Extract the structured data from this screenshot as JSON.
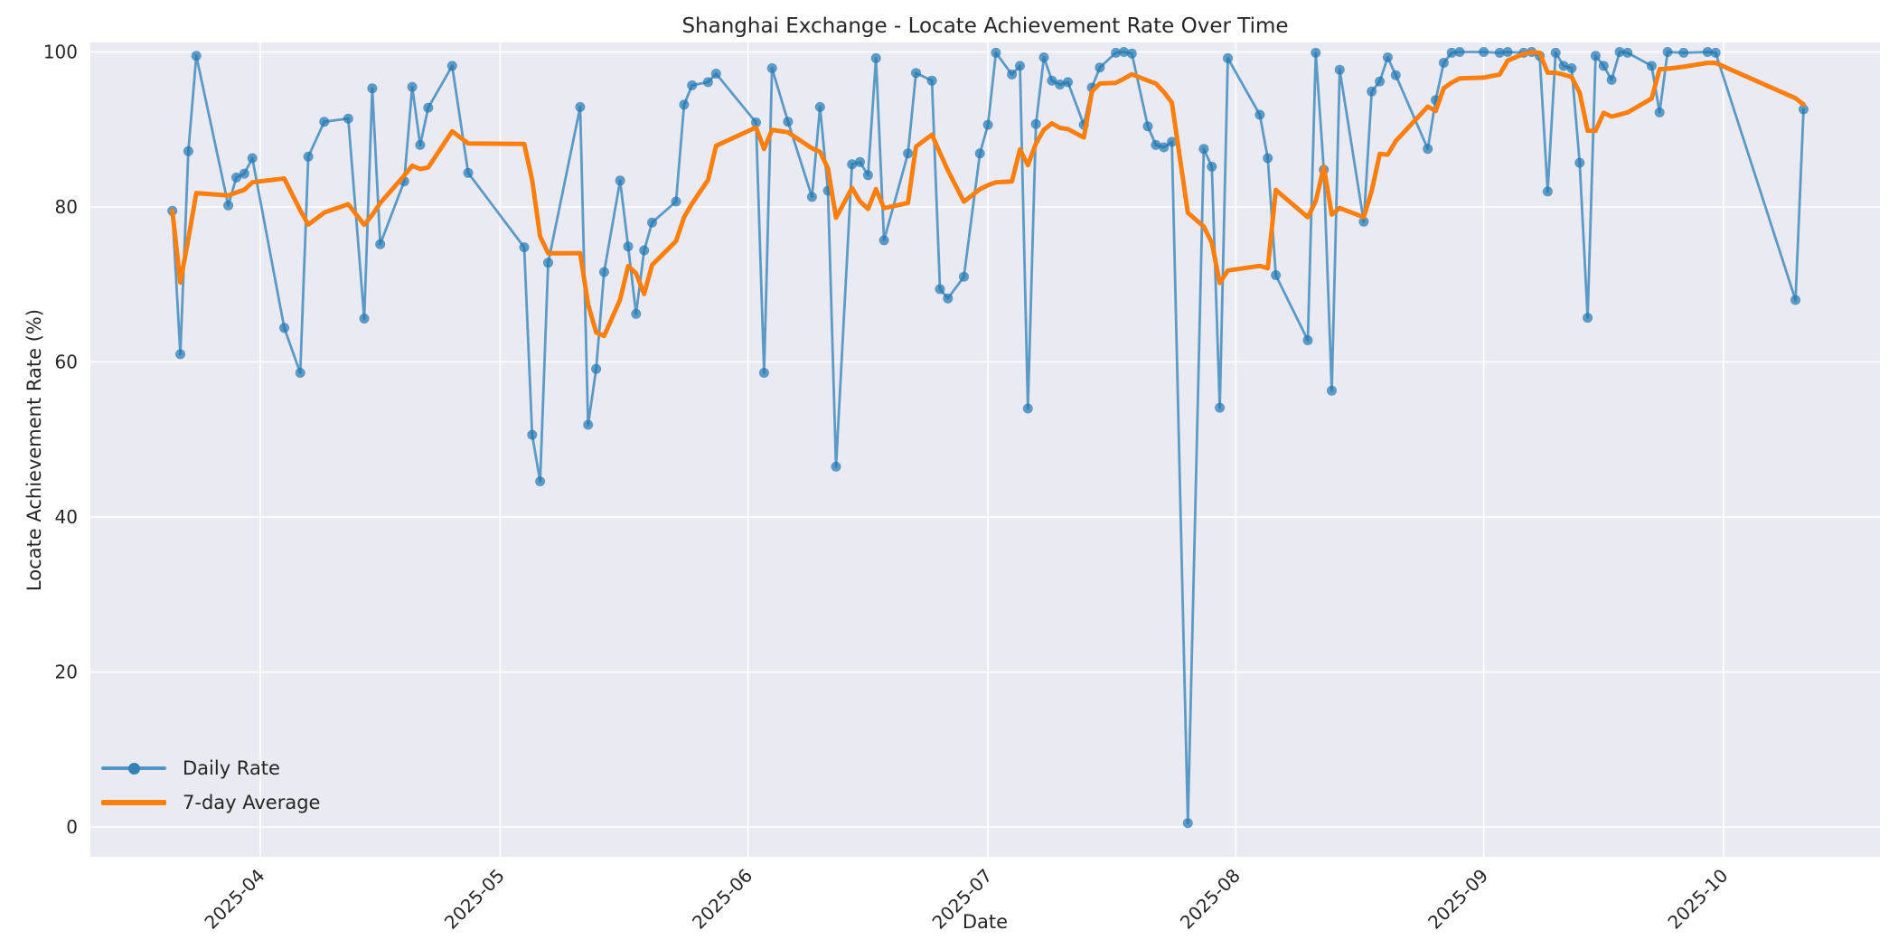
{
  "title": "Shanghai Exchange - Locate Achievement Rate Over Time",
  "xlabel": "Date",
  "ylabel": "Locate Achievement Rate (%)",
  "legend": {
    "daily": "Daily Rate",
    "avg": "7-day Average"
  },
  "colors": {
    "daily_line": "#1f77b4",
    "daily_alpha": 0.7,
    "avg_line": "#ff7f0e",
    "axes_bg": "#eaeaf2",
    "grid": "#ffffff",
    "text": "#262626",
    "figure_bg": "#ffffff"
  },
  "chart_data": {
    "type": "line",
    "title": "Shanghai Exchange - Locate Achievement Rate Over Time",
    "xlabel": "Date",
    "ylabel": "Locate Achievement Rate (%)",
    "grid": true,
    "legend_position": "lower left",
    "ylim": [
      -4,
      101.3
    ],
    "y_ticks": [
      0,
      20,
      40,
      60,
      80,
      100
    ],
    "x_ticks": [
      "2025-04",
      "2025-05",
      "2025-06",
      "2025-07",
      "2025-08",
      "2025-09",
      "2025-10"
    ],
    "series": [
      {
        "name": "Daily Rate",
        "style": "line+markers",
        "dates": [
          "2025-03-21",
          "2025-03-22",
          "2025-03-23",
          "2025-03-24",
          "2025-03-28",
          "2025-03-29",
          "2025-03-30",
          "2025-03-31",
          "2025-04-04",
          "2025-04-06",
          "2025-04-07",
          "2025-04-09",
          "2025-04-12",
          "2025-04-14",
          "2025-04-15",
          "2025-04-16",
          "2025-04-19",
          "2025-04-20",
          "2025-04-21",
          "2025-04-22",
          "2025-04-25",
          "2025-04-27",
          "2025-05-04",
          "2025-05-05",
          "2025-05-06",
          "2025-05-07",
          "2025-05-11",
          "2025-05-12",
          "2025-05-13",
          "2025-05-14",
          "2025-05-16",
          "2025-05-17",
          "2025-05-18",
          "2025-05-19",
          "2025-05-20",
          "2025-05-23",
          "2025-05-24",
          "2025-05-25",
          "2025-05-27",
          "2025-05-28",
          "2025-06-02",
          "2025-06-03",
          "2025-06-04",
          "2025-06-06",
          "2025-06-09",
          "2025-06-10",
          "2025-06-11",
          "2025-06-12",
          "2025-06-14",
          "2025-06-15",
          "2025-06-16",
          "2025-06-17",
          "2025-06-18",
          "2025-06-21",
          "2025-06-22",
          "2025-06-24",
          "2025-06-25",
          "2025-06-26",
          "2025-06-28",
          "2025-06-30",
          "2025-07-01",
          "2025-07-02",
          "2025-07-04",
          "2025-07-05",
          "2025-07-06",
          "2025-07-07",
          "2025-07-08",
          "2025-07-09",
          "2025-07-10",
          "2025-07-11",
          "2025-07-13",
          "2025-07-14",
          "2025-07-15",
          "2025-07-17",
          "2025-07-18",
          "2025-07-19",
          "2025-07-21",
          "2025-07-22",
          "2025-07-23",
          "2025-07-24",
          "2025-07-26",
          "2025-07-28",
          "2025-07-29",
          "2025-07-30",
          "2025-07-31",
          "2025-08-04",
          "2025-08-05",
          "2025-08-06",
          "2025-08-10",
          "2025-08-11",
          "2025-08-12",
          "2025-08-13",
          "2025-08-14",
          "2025-08-17",
          "2025-08-18",
          "2025-08-19",
          "2025-08-20",
          "2025-08-21",
          "2025-08-25",
          "2025-08-26",
          "2025-08-27",
          "2025-08-28",
          "2025-08-29",
          "2025-09-01",
          "2025-09-03",
          "2025-09-04",
          "2025-09-06",
          "2025-09-07",
          "2025-09-08",
          "2025-09-09",
          "2025-09-10",
          "2025-09-11",
          "2025-09-12",
          "2025-09-13",
          "2025-09-14",
          "2025-09-15",
          "2025-09-16",
          "2025-09-17",
          "2025-09-18",
          "2025-09-19",
          "2025-09-22",
          "2025-09-23",
          "2025-09-24",
          "2025-09-26",
          "2025-09-29",
          "2025-09-30",
          "2025-10-10",
          "2025-10-11"
        ],
        "values": [
          79.5,
          61.0,
          87.2,
          99.5,
          80.2,
          83.8,
          84.3,
          86.3,
          64.4,
          58.6,
          86.5,
          91.0,
          91.4,
          65.6,
          95.3,
          75.2,
          83.3,
          95.5,
          88.0,
          92.8,
          98.2,
          84.4,
          74.8,
          50.6,
          44.6,
          72.8,
          92.9,
          51.9,
          59.1,
          71.6,
          83.4,
          74.9,
          66.2,
          74.4,
          78.0,
          80.7,
          93.2,
          95.7,
          96.1,
          97.2,
          90.9,
          58.6,
          97.9,
          91.0,
          81.3,
          92.9,
          82.1,
          46.5,
          85.5,
          85.8,
          84.1,
          99.2,
          75.7,
          86.9,
          97.3,
          96.3,
          69.4,
          68.2,
          71.0,
          86.9,
          90.6,
          99.9,
          97.1,
          98.2,
          54.0,
          90.7,
          99.3,
          96.3,
          95.8,
          96.1,
          90.6,
          95.4,
          98.0,
          99.9,
          100.0,
          99.8,
          90.4,
          88.0,
          87.7,
          88.4,
          0.5,
          87.5,
          85.2,
          54.1,
          99.2,
          91.9,
          86.3,
          71.2,
          62.8,
          99.9,
          84.8,
          56.3,
          97.7,
          78.1,
          94.9,
          96.2,
          99.3,
          97.0,
          87.5,
          93.8,
          98.6,
          99.9,
          100.0,
          100.0,
          99.9,
          100.0,
          99.9,
          100.0,
          99.5,
          82.0,
          99.9,
          98.2,
          97.9,
          85.7,
          65.7,
          99.5,
          98.2,
          96.4,
          100.0,
          99.9,
          98.2,
          92.2,
          100.0,
          99.9,
          100.0,
          99.9,
          68.0,
          92.6
        ]
      },
      {
        "name": "7-day Average",
        "style": "thick-line",
        "derived": "rolling_mean_window7_min_periods1_of_Daily_Rate"
      }
    ]
  }
}
